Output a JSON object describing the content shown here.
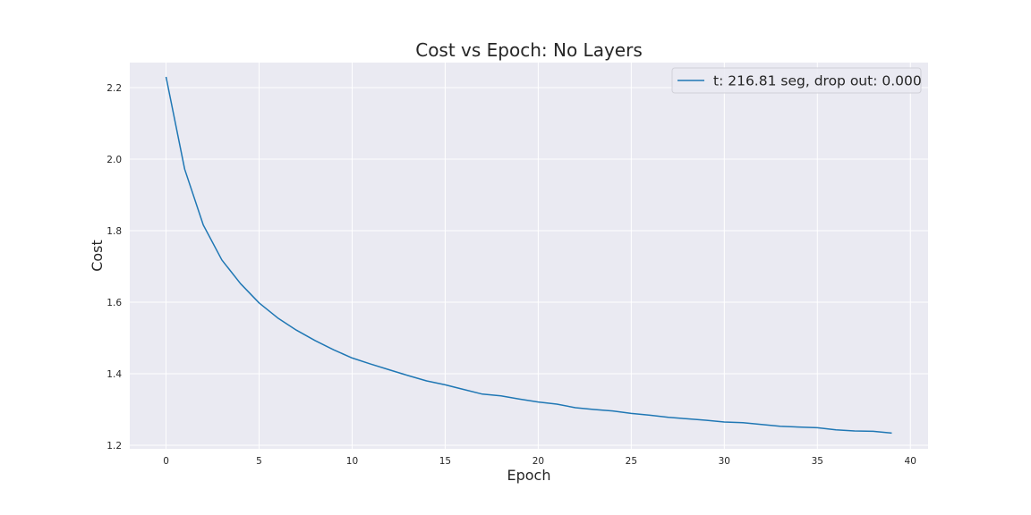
{
  "chart_data": {
    "type": "line",
    "title": "Cost vs Epoch: No Layers",
    "xlabel": "Epoch",
    "ylabel": "Cost",
    "xlim": [
      -1.95,
      40.95
    ],
    "ylim": [
      1.19,
      2.27
    ],
    "xticks": [
      0,
      5,
      10,
      15,
      20,
      25,
      30,
      35,
      40
    ],
    "yticks": [
      1.2,
      1.4,
      1.6,
      1.8,
      2.0,
      2.2
    ],
    "grid": true,
    "legend_position": "top-right",
    "colors": {
      "background": "#eaeaf2",
      "grid": "#ffffff",
      "line": "#1f77b4"
    },
    "series": [
      {
        "name": "t: 216.81 seg, drop out: 0.000",
        "x": [
          0,
          1,
          2,
          3,
          4,
          5,
          6,
          7,
          8,
          9,
          10,
          11,
          12,
          13,
          14,
          15,
          16,
          17,
          18,
          19,
          20,
          21,
          22,
          23,
          24,
          25,
          26,
          27,
          28,
          29,
          30,
          31,
          32,
          33,
          34,
          35,
          36,
          37,
          38,
          39
        ],
        "values": [
          2.23,
          1.972,
          1.816,
          1.718,
          1.652,
          1.598,
          1.556,
          1.522,
          1.493,
          1.467,
          1.444,
          1.427,
          1.411,
          1.395,
          1.38,
          1.369,
          1.356,
          1.343,
          1.338,
          1.329,
          1.321,
          1.315,
          1.305,
          1.3,
          1.296,
          1.289,
          1.284,
          1.278,
          1.274,
          1.27,
          1.265,
          1.263,
          1.258,
          1.253,
          1.251,
          1.249,
          1.243,
          1.24,
          1.239,
          1.234
        ]
      }
    ]
  }
}
